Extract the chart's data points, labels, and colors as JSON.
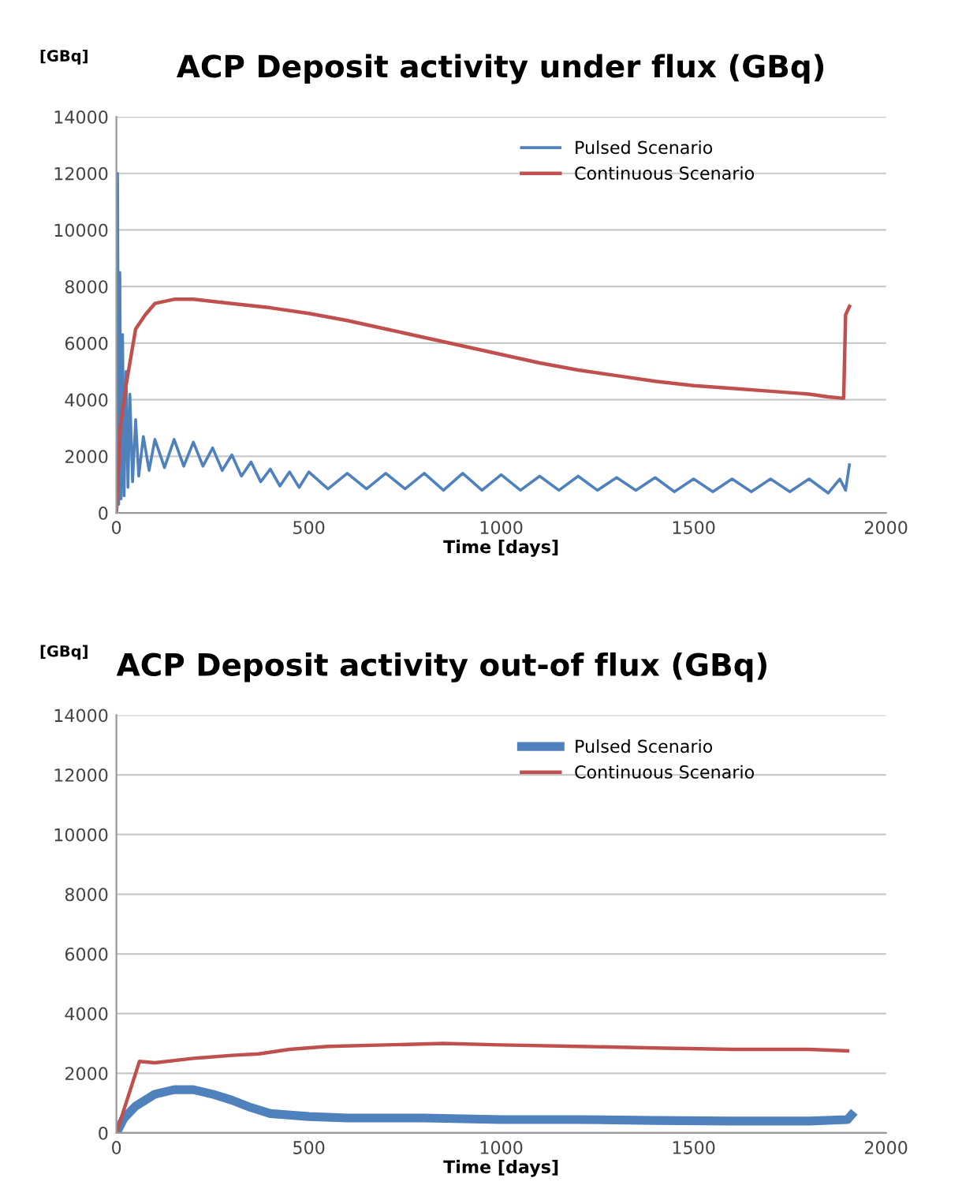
{
  "chart_data": [
    {
      "type": "line",
      "title": "ACP Deposit activity under flux (GBq)",
      "ylabel": "[GBq]",
      "xlabel": "Time [days]",
      "xlim": [
        0,
        2000
      ],
      "xticks": [
        0,
        500,
        1000,
        1500,
        2000
      ],
      "ylim": [
        0,
        14000
      ],
      "yticks": [
        0,
        2000,
        4000,
        6000,
        8000,
        10000,
        12000,
        14000
      ],
      "grid": "y",
      "legend": "top right",
      "series": [
        {
          "name": "Pulsed Scenario",
          "color": "#4f81bd",
          "x": [
            0,
            3,
            6,
            9,
            12,
            16,
            20,
            25,
            30,
            35,
            42,
            50,
            58,
            70,
            85,
            100,
            125,
            150,
            175,
            200,
            225,
            250,
            275,
            300,
            325,
            350,
            375,
            400,
            425,
            450,
            475,
            500,
            550,
            600,
            650,
            700,
            750,
            800,
            850,
            900,
            950,
            1000,
            1050,
            1100,
            1150,
            1200,
            1250,
            1300,
            1350,
            1400,
            1450,
            1500,
            1550,
            1600,
            1650,
            1700,
            1750,
            1800,
            1850,
            1880,
            1895,
            1905
          ],
          "values": [
            0,
            12000,
            300,
            8500,
            500,
            6300,
            600,
            5000,
            900,
            4200,
            1100,
            3300,
            1300,
            2700,
            1500,
            2600,
            1600,
            2600,
            1650,
            2500,
            1650,
            2300,
            1500,
            2050,
            1300,
            1800,
            1100,
            1550,
            950,
            1450,
            900,
            1450,
            850,
            1400,
            850,
            1400,
            850,
            1400,
            800,
            1400,
            800,
            1350,
            800,
            1300,
            800,
            1300,
            800,
            1250,
            800,
            1250,
            750,
            1200,
            750,
            1200,
            750,
            1200,
            750,
            1200,
            700,
            1200,
            800,
            1700
          ]
        },
        {
          "name": "Continuous Scenario",
          "color": "#c0504d",
          "x": [
            0,
            10,
            25,
            50,
            75,
            100,
            150,
            200,
            300,
            400,
            500,
            600,
            700,
            800,
            900,
            1000,
            1100,
            1200,
            1300,
            1400,
            1500,
            1600,
            1700,
            1800,
            1850,
            1890,
            1895,
            1905
          ],
          "values": [
            0,
            3000,
            4500,
            6500,
            7000,
            7400,
            7550,
            7550,
            7400,
            7250,
            7050,
            6800,
            6500,
            6200,
            5900,
            5600,
            5300,
            5050,
            4850,
            4650,
            4500,
            4400,
            4300,
            4200,
            4100,
            4050,
            7000,
            7300
          ]
        }
      ]
    },
    {
      "type": "line",
      "title": "ACP Deposit activity out-of flux (GBq)",
      "ylabel": "[GBq]",
      "xlabel": "Time [days]",
      "xlim": [
        0,
        2000
      ],
      "xticks": [
        0,
        500,
        1000,
        1500,
        2000
      ],
      "ylim": [
        0,
        14000
      ],
      "yticks": [
        0,
        2000,
        4000,
        6000,
        8000,
        10000,
        12000,
        14000
      ],
      "grid": "y",
      "legend": "top right",
      "series": [
        {
          "name": "Pulsed Scenario",
          "color": "#4f81bd",
          "x": [
            0,
            20,
            50,
            100,
            150,
            200,
            250,
            300,
            350,
            400,
            500,
            600,
            800,
            1000,
            1200,
            1400,
            1600,
            1800,
            1900,
            1910
          ],
          "values": [
            0,
            500,
            900,
            1300,
            1450,
            1450,
            1300,
            1100,
            850,
            650,
            550,
            500,
            500,
            450,
            450,
            420,
            400,
            400,
            450,
            600
          ]
        },
        {
          "name": "Continuous Scenario",
          "color": "#c0504d",
          "x": [
            0,
            60,
            100,
            200,
            300,
            370,
            450,
            550,
            700,
            850,
            1000,
            1200,
            1400,
            1600,
            1800,
            1900
          ],
          "values": [
            0,
            2400,
            2350,
            2500,
            2600,
            2650,
            2800,
            2900,
            2950,
            3000,
            2950,
            2900,
            2850,
            2800,
            2800,
            2750
          ]
        }
      ]
    }
  ]
}
